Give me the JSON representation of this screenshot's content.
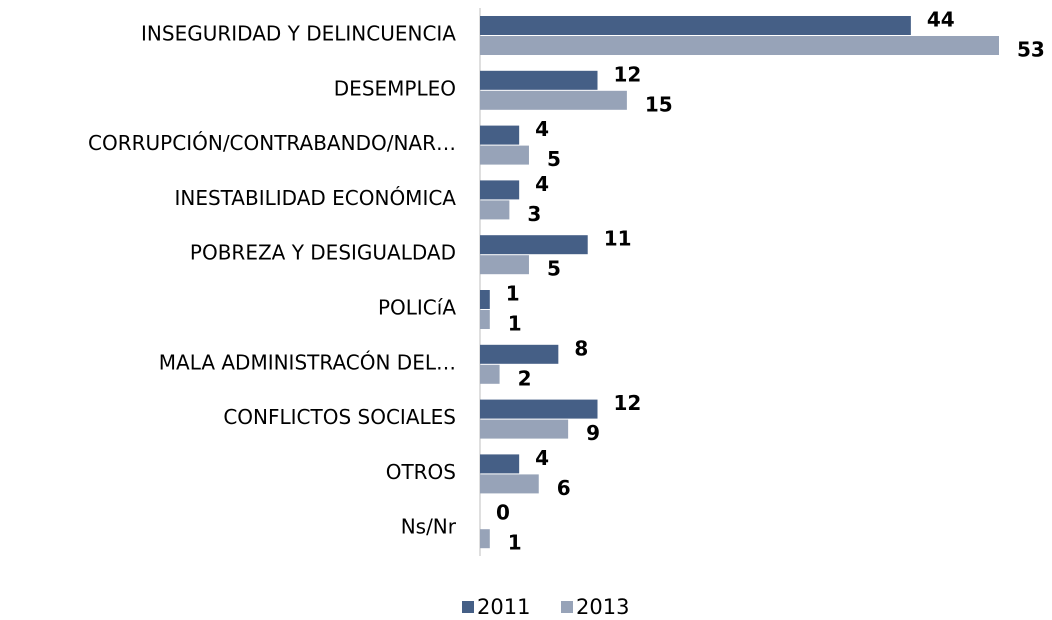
{
  "chart_data": {
    "type": "bar",
    "orientation": "horizontal",
    "categories": [
      "INSEGURIDAD Y DELINCUENCIA",
      "DESEMPLEO",
      "CORRUPCIÓN/CONTRABANDO/NAR…",
      "INESTABILIDAD ECONÓMICA",
      "POBREZA Y DESIGUALDAD",
      "POLICíA",
      "MALA ADMINISTRACÓN DEL…",
      "CONFLICTOS SOCIALES",
      "OTROS",
      "Ns/Nr"
    ],
    "series": [
      {
        "name": "2011",
        "color": "#455f86",
        "values": [
          44,
          12,
          4,
          4,
          11,
          1,
          8,
          12,
          4,
          0
        ]
      },
      {
        "name": "2013",
        "color": "#97a3b8",
        "values": [
          53,
          15,
          5,
          3,
          5,
          1,
          2,
          9,
          6,
          1
        ]
      }
    ],
    "legend": "bottom"
  }
}
